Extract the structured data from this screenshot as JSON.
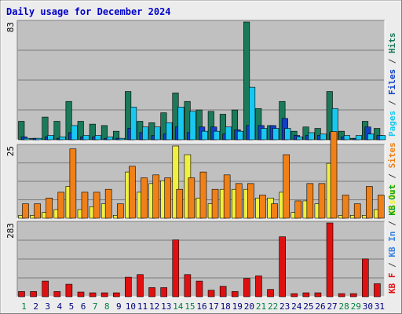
{
  "chart_data": {
    "type": "bar",
    "title": "Daily usage for December 2024",
    "categories": [
      "1",
      "2",
      "3",
      "4",
      "5",
      "6",
      "7",
      "8",
      "9",
      "10",
      "11",
      "12",
      "13",
      "14",
      "15",
      "16",
      "17",
      "18",
      "19",
      "20",
      "21",
      "22",
      "23",
      "24",
      "25",
      "26",
      "27",
      "28",
      "29",
      "30",
      "31"
    ],
    "weekend_days": [
      "1",
      "7",
      "8",
      "14",
      "15",
      "21",
      "22",
      "28",
      "29"
    ],
    "day_colors": {
      "weekday": "#000080",
      "weekend": "#008040"
    },
    "panels": [
      {
        "name": "top",
        "ymax": 83,
        "tick_label": "83",
        "series": [
          {
            "name": "Hits",
            "color": "#1a7a5a",
            "values": [
              13,
              1,
              16,
              13,
              27,
              13,
              11,
              10,
              6,
              34,
              13,
              12,
              19,
              33,
              27,
              21,
              20,
              18,
              21,
              83,
              22,
              10,
              27,
              6,
              9,
              8,
              34,
              6,
              1,
              13,
              8
            ]
          },
          {
            "name": "Files",
            "color": "#1040c8",
            "values": [
              2,
              1,
              2,
              1,
              5,
              2,
              2,
              1,
              1,
              8,
              5,
              3,
              4,
              9,
              5,
              9,
              9,
              4,
              7,
              10,
              10,
              10,
              15,
              3,
              3,
              3,
              5,
              2,
              1,
              9,
              3
            ]
          },
          {
            "name": "Pages",
            "color": "#18c8f0",
            "values": [
              1,
              1,
              3,
              2,
              10,
              3,
              3,
              2,
              1,
              23,
              9,
              9,
              12,
              23,
              20,
              6,
              6,
              9,
              6,
              37,
              8,
              8,
              8,
              2,
              5,
              4,
              22,
              3,
              3,
              4,
              3
            ]
          }
        ],
        "side_labels": [
          {
            "text": "Pages",
            "color": "#18c8f0"
          },
          {
            "text": " / ",
            "color": "#404040"
          },
          {
            "text": "Files",
            "color": "#1040c8"
          },
          {
            "text": " / ",
            "color": "#404040"
          },
          {
            "text": "Hits",
            "color": "#1a7a5a"
          }
        ]
      },
      {
        "name": "middle",
        "ymax": 25,
        "tick_label": "25",
        "series": [
          {
            "name": "Visits",
            "color": "#f0f040",
            "values": [
              1,
              1,
              2,
              3,
              11,
              3,
              4,
              5,
              1,
              16,
              9,
              12,
              13,
              25,
              22,
              7,
              5,
              10,
              10,
              10,
              7,
              7,
              9,
              2,
              6,
              5,
              19,
              1,
              1,
              1,
              3
            ]
          },
          {
            "name": "Sites",
            "color": "#f08018",
            "values": [
              5,
              5,
              7,
              9,
              24,
              9,
              9,
              10,
              5,
              18,
              14,
              15,
              14,
              10,
              14,
              16,
              10,
              15,
              12,
              12,
              8,
              5,
              22,
              6,
              12,
              12,
              30,
              8,
              5,
              11,
              8
            ]
          }
        ],
        "side_labels": [
          {
            "text": "Visits",
            "color": "#f0f040"
          },
          {
            "text": " / ",
            "color": "#404040"
          },
          {
            "text": "Sites",
            "color": "#f08018"
          }
        ]
      },
      {
        "name": "bottom",
        "ymax": 283,
        "tick_label": "283",
        "series": [
          {
            "name": "KB F",
            "color": "#e01010",
            "values": [
              20,
              20,
              60,
              20,
              48,
              18,
              15,
              15,
              15,
              75,
              85,
              35,
              35,
              218,
              85,
              60,
              25,
              40,
              20,
              70,
              80,
              28,
              230,
              12,
              15,
              15,
              283,
              12,
              12,
              145,
              50
            ]
          }
        ],
        "side_labels": [
          {
            "text": "KB F",
            "color": "#e01010"
          },
          {
            "text": " / ",
            "color": "#404040"
          },
          {
            "text": "KB In",
            "color": "#3880e0"
          },
          {
            "text": " / ",
            "color": "#404040"
          },
          {
            "text": "KB Out",
            "color": "#10a020"
          }
        ]
      }
    ]
  }
}
